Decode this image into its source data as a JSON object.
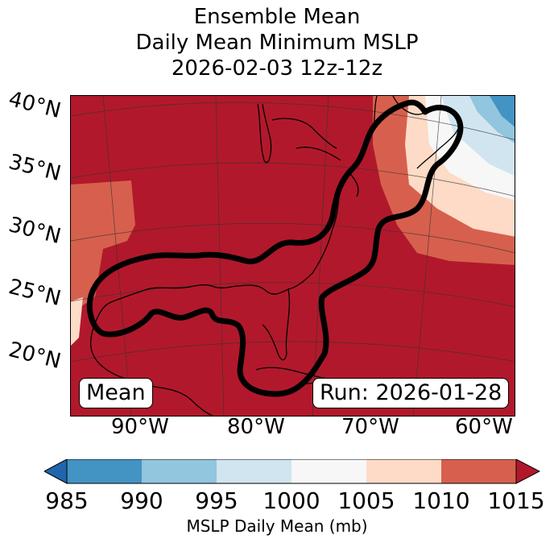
{
  "title": {
    "line1": "Ensemble Mean",
    "line2": "Daily Mean Minimum MSLP",
    "line3": "2026-02-03 12z-12z"
  },
  "map": {
    "lat_labels": [
      "40°N",
      "35°N",
      "30°N",
      "25°N",
      "20°N"
    ],
    "lon_labels": [
      "90°W",
      "80°W",
      "70°W",
      "60°W"
    ],
    "mean_label": "Mean",
    "run_label": "Run: 2026-01-28",
    "colors": {
      "lt985": "#2166ac",
      "c985_990": "#4393c3",
      "c990_995": "#92c5de",
      "c995_1000": "#d1e5f0",
      "c1000_1005": "#f7f7f7",
      "c1005_1010": "#fddbc7",
      "c1010_1015": "#d6604d",
      "gt1015": "#b2182b"
    }
  },
  "colorbar": {
    "ticks": [
      "985",
      "990",
      "995",
      "1000",
      "1005",
      "1010",
      "1015"
    ],
    "label": "MSLP Daily Mean (mb)"
  }
}
